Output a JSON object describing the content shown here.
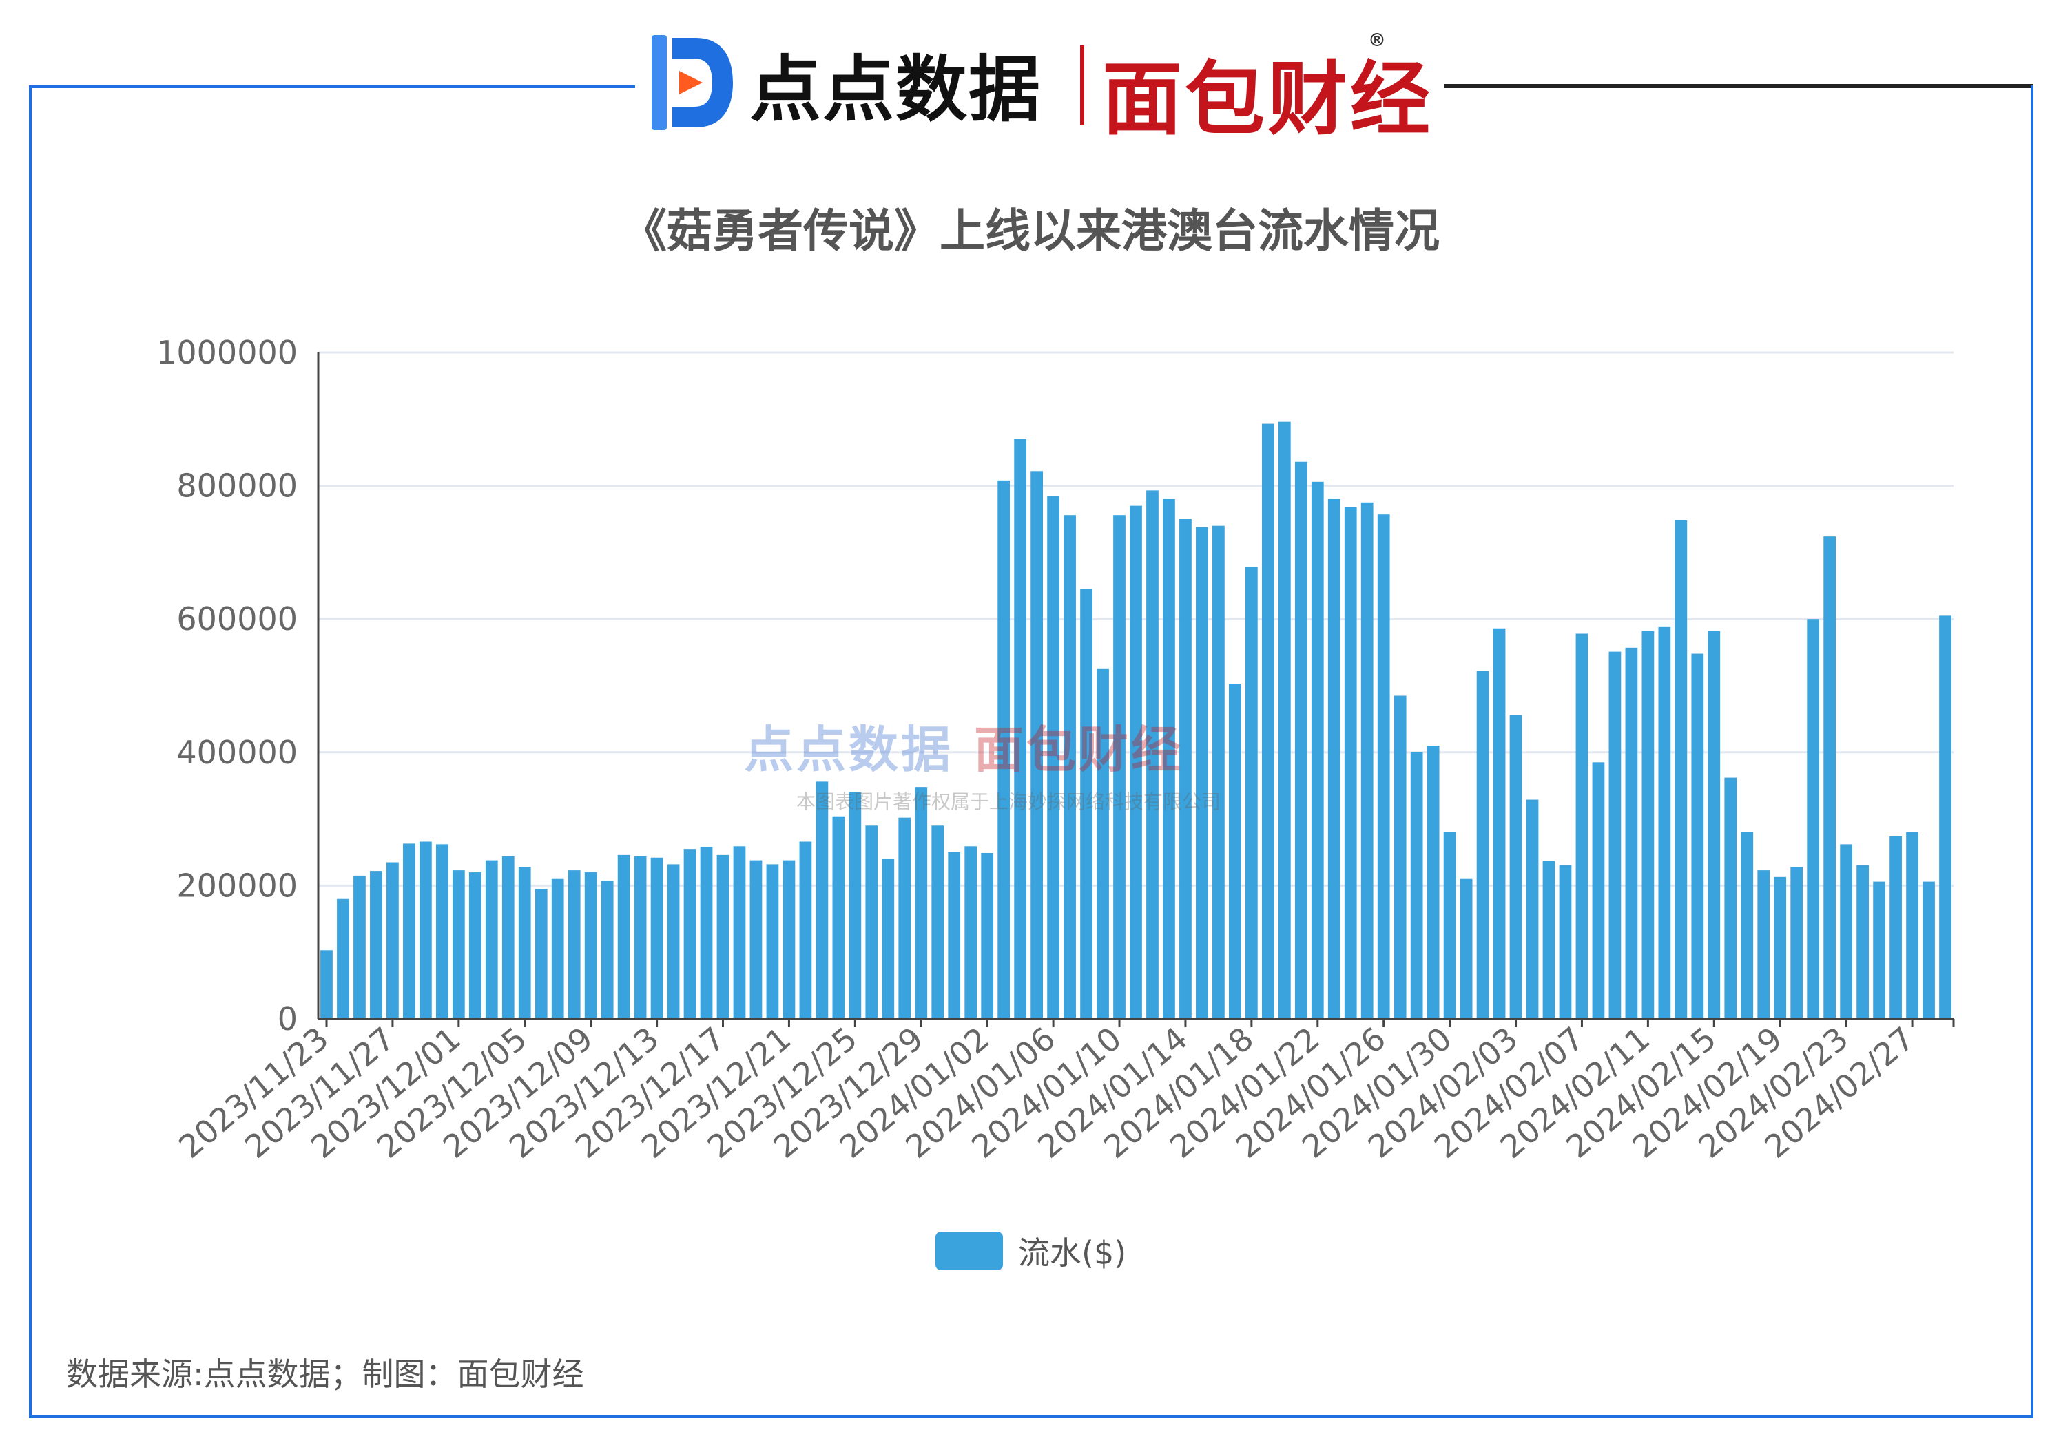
{
  "header": {
    "logo1_text": "点点数据",
    "logo2_text": "面包财经",
    "registered_mark": "®"
  },
  "watermark": {
    "main_left": "点点数据",
    "main_right": "面包财经",
    "sub": "本图表图片著作权属于上海妙探网络科技有限公司"
  },
  "footer": {
    "source": "数据来源:点点数据；制图：面包财经"
  },
  "colors": {
    "bar": "#3aa2dc",
    "frame_blue": "#1f6fe0",
    "frame_black": "#222222",
    "brand_red": "#c4141c",
    "grid": "#e3e7f0"
  },
  "chart_data": {
    "type": "bar",
    "title": "《菇勇者传说》上线以来港澳台流水情况",
    "legend": [
      "流水($)"
    ],
    "legend_position": "bottom",
    "grid": true,
    "ylim": [
      0,
      1000000
    ],
    "y_ticks": [
      0,
      200000,
      400000,
      600000,
      800000,
      1000000
    ],
    "x_tick_labels": [
      "2023/11/23",
      "2023/11/27",
      "2023/12/01",
      "2023/12/05",
      "2023/12/09",
      "2023/12/13",
      "2023/12/17",
      "2023/12/21",
      "2023/12/25",
      "2023/12/29",
      "2024/01/02",
      "2024/01/06",
      "2024/01/10",
      "2024/01/14",
      "2024/01/18",
      "2024/01/22",
      "2024/01/26",
      "2024/01/30",
      "2024/02/03",
      "2024/02/07",
      "2024/02/11",
      "2024/02/15",
      "2024/02/19",
      "2024/02/23",
      "2024/02/27"
    ],
    "series": [
      {
        "name": "流水($)",
        "values": [
          103000,
          180000,
          215000,
          222000,
          235000,
          263000,
          266000,
          262000,
          223000,
          220000,
          238000,
          244000,
          228000,
          195000,
          210000,
          223000,
          220000,
          207000,
          246000,
          244000,
          242000,
          232000,
          255000,
          258000,
          246000,
          259000,
          238000,
          232000,
          238000,
          266000,
          356000,
          304000,
          340000,
          290000,
          240000,
          302000,
          348000,
          290000,
          250000,
          259000,
          249000,
          808000,
          870000,
          822000,
          785000,
          756000,
          645000,
          525000,
          756000,
          770000,
          793000,
          780000,
          750000,
          738000,
          740000,
          503000,
          678000,
          893000,
          896000,
          836000,
          806000,
          780000,
          768000,
          775000,
          757000,
          485000,
          400000,
          410000,
          281000,
          210000,
          522000,
          586000,
          456000,
          329000,
          237000,
          231000,
          578000,
          385000,
          551000,
          557000,
          582000,
          588000,
          748000,
          548000,
          582000,
          362000,
          281000,
          223000,
          213000,
          228000,
          600000,
          724000,
          262000,
          231000,
          206000,
          274000,
          280000,
          206000,
          605000
        ]
      }
    ]
  }
}
